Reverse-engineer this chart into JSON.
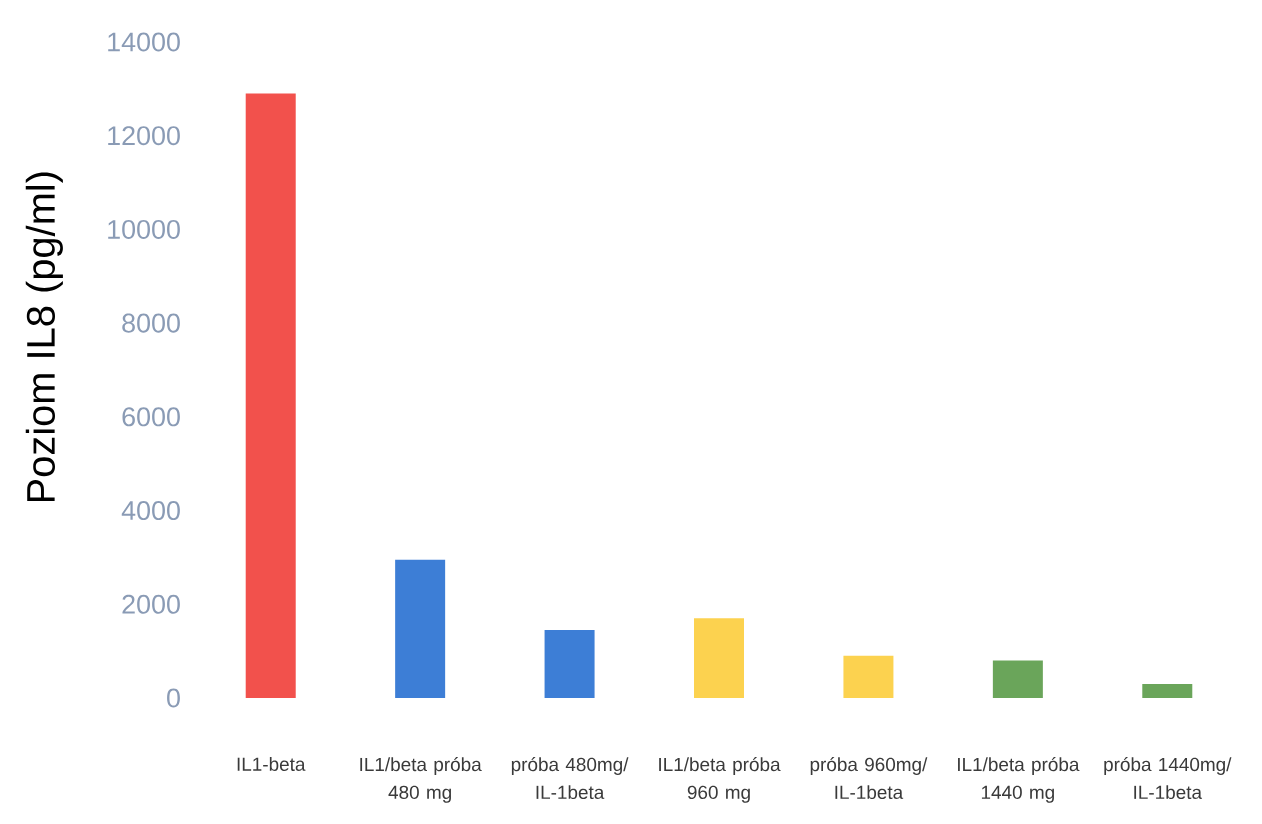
{
  "chart_data": {
    "type": "bar",
    "ylabel": "Poziom IL8 (pg/ml)",
    "categories": [
      "IL1-beta",
      "IL1/beta próba 480 mg",
      "próba 480mg/ IL-1beta",
      "IL1/beta próba 960 mg",
      "próba 960mg/ IL-1beta",
      "IL1/beta próba 1440 mg",
      "próba 1440mg/ IL-1beta"
    ],
    "values": [
      12900,
      2950,
      1450,
      1700,
      900,
      800,
      300
    ],
    "colors": [
      "#f2514c",
      "#3d7ed6",
      "#3d7ed6",
      "#fcd24f",
      "#fcd24f",
      "#6aa55a",
      "#6aa55a"
    ],
    "ylim": [
      0,
      14000
    ],
    "yticks": [
      0,
      2000,
      4000,
      6000,
      8000,
      10000,
      12000,
      14000
    ]
  }
}
